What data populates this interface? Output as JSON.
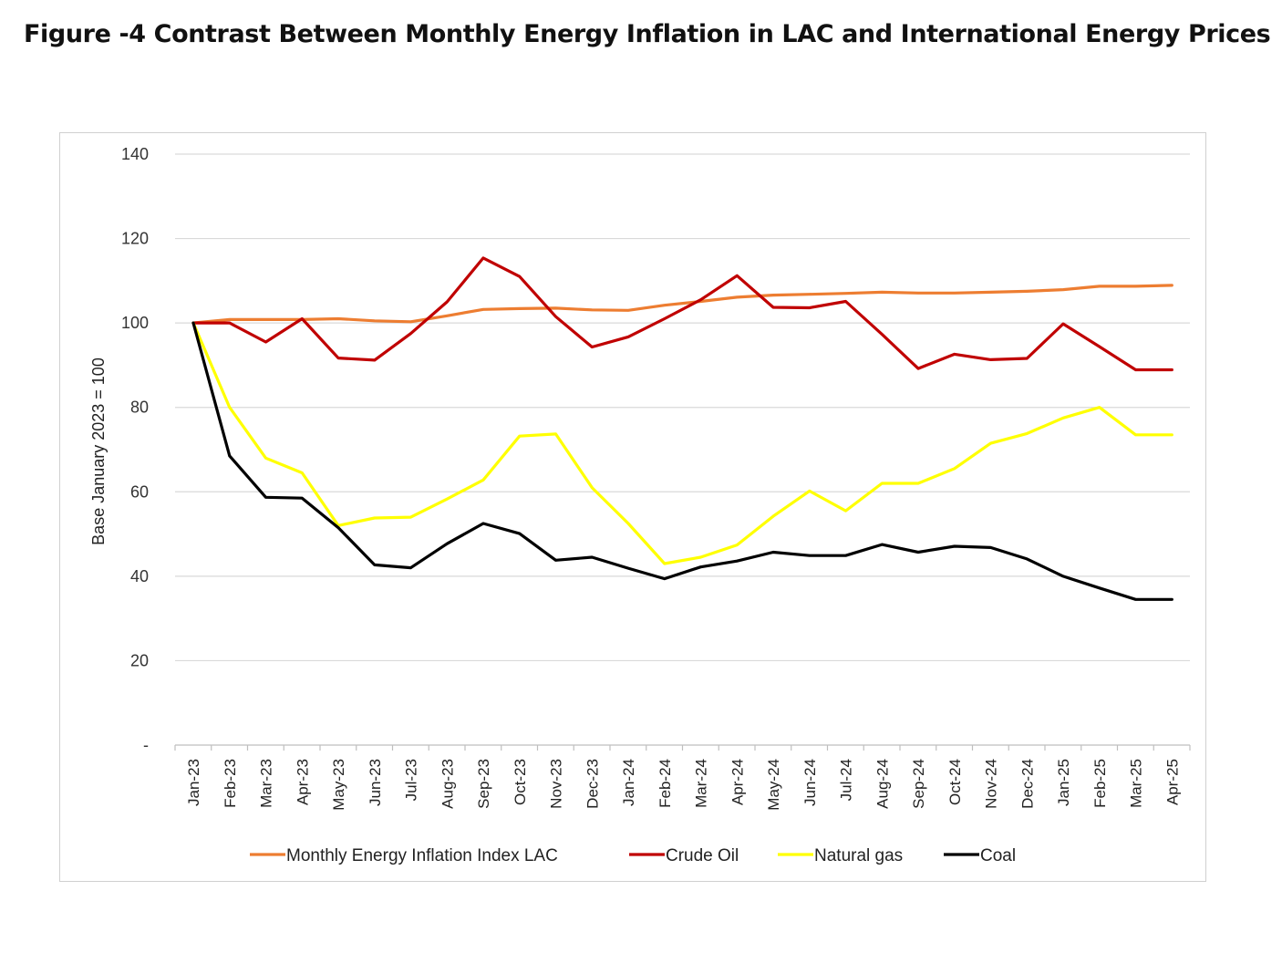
{
  "title": "Figure -4 Contrast Between Monthly Energy Inflation in LAC and International Energy Prices",
  "chart_data": {
    "type": "line",
    "ylabel": "Base January 2023 = 100",
    "xlabel": "",
    "ylim": [
      0,
      140
    ],
    "yticks": [
      {
        "value": 0,
        "label": "-"
      },
      {
        "value": 20,
        "label": "20"
      },
      {
        "value": 40,
        "label": "40"
      },
      {
        "value": 60,
        "label": "60"
      },
      {
        "value": 80,
        "label": "80"
      },
      {
        "value": 100,
        "label": "100"
      },
      {
        "value": 120,
        "label": "120"
      },
      {
        "value": 140,
        "label": "140"
      }
    ],
    "grid": true,
    "legend_position": "bottom",
    "categories": [
      "Jan-23",
      "Feb-23",
      "Mar-23",
      "Apr-23",
      "May-23",
      "Jun-23",
      "Jul-23",
      "Aug-23",
      "Sep-23",
      "Oct-23",
      "Nov-23",
      "Dec-23",
      "Jan-24",
      "Feb-24",
      "Mar-24",
      "Apr-24",
      "May-24",
      "Jun-24",
      "Jul-24",
      "Aug-24",
      "Sep-24",
      "Oct-24",
      "Nov-24",
      "Dec-24",
      "Jan-25",
      "Feb-25",
      "Mar-25",
      "Apr-25"
    ],
    "series": [
      {
        "name": "Monthly Energy Inflation Index LAC",
        "color": "#ED7D31",
        "values": [
          100,
          100.8,
          100.8,
          100.8,
          101,
          100.5,
          100.3,
          101.7,
          103.2,
          103.4,
          103.5,
          103.1,
          103,
          104.2,
          105.1,
          106.1,
          106.6,
          106.8,
          107,
          107.3,
          107.1,
          107.1,
          107.3,
          107.5,
          107.9,
          108.7,
          108.7,
          108.9
        ]
      },
      {
        "name": "Crude Oil",
        "color": "#C00000",
        "values": [
          100,
          100,
          95.5,
          101,
          91.7,
          91.2,
          97.5,
          105,
          115.4,
          111,
          101.5,
          94.3,
          96.7,
          101,
          105.5,
          111.2,
          103.7,
          103.6,
          105.1,
          97.3,
          89.2,
          92.6,
          91.3,
          91.6,
          99.8,
          94.4,
          88.9,
          88.9
        ]
      },
      {
        "name": "Natural gas",
        "color": "#FFFF00",
        "values": [
          100,
          80,
          68,
          64.5,
          52,
          53.8,
          54,
          58.3,
          62.8,
          73.2,
          73.7,
          61,
          52.5,
          43,
          44.5,
          47.4,
          54.2,
          60.2,
          55.5,
          62,
          62,
          65.5,
          71.5,
          73.8,
          77.5,
          80,
          73.5,
          73.5
        ]
      },
      {
        "name": "Coal",
        "color": "#000000",
        "values": [
          100,
          68.5,
          58.7,
          58.5,
          51.5,
          42.7,
          42,
          47.7,
          52.5,
          50.1,
          43.8,
          44.5,
          41.9,
          39.4,
          42.2,
          43.6,
          45.7,
          44.9,
          44.9,
          47.5,
          45.7,
          47.1,
          46.8,
          44.1,
          40,
          37.2,
          34.5,
          34.5
        ]
      }
    ]
  }
}
